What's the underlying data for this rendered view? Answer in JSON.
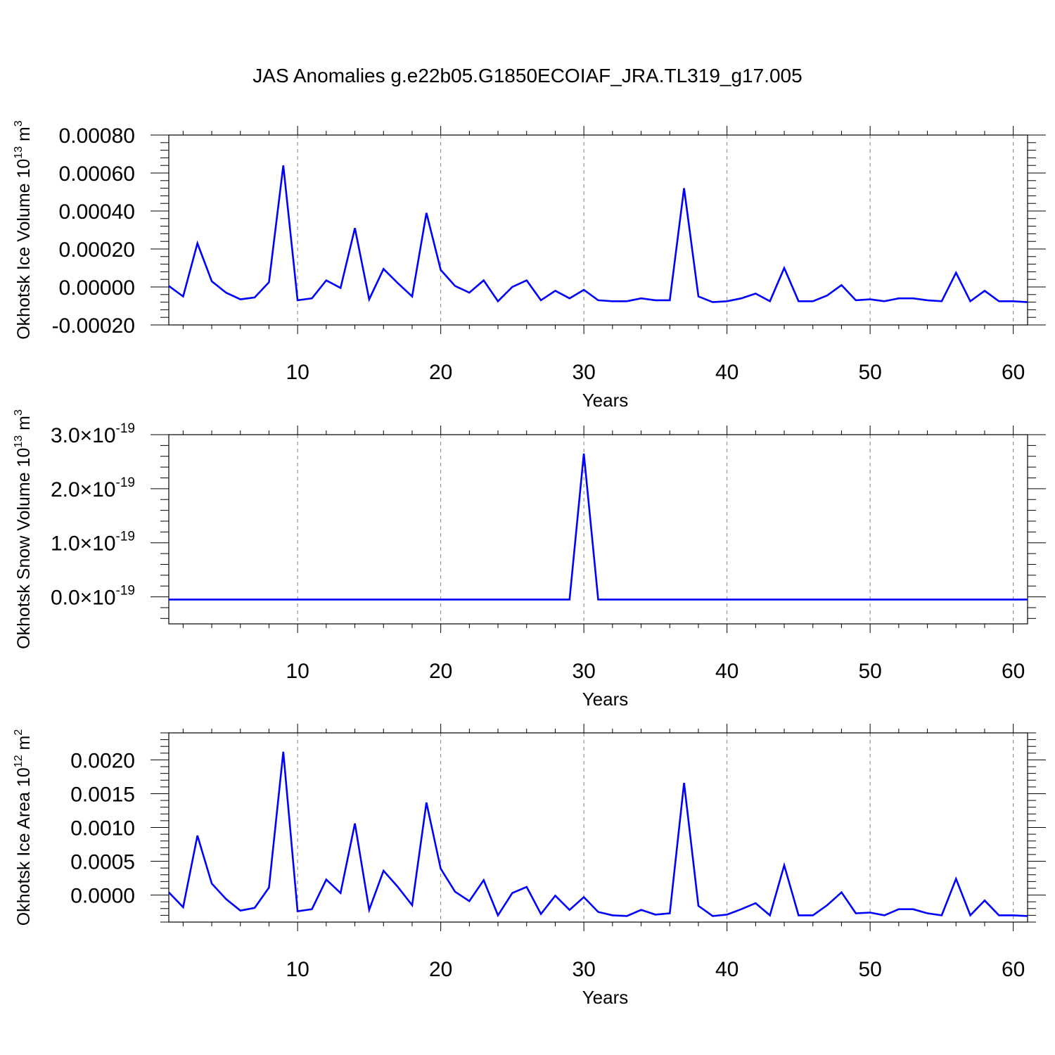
{
  "title": "JAS Anomalies g.e22b05.G1850ECOIAF_JRA.TL319_g17.005",
  "colors": {
    "series": "#0000ff",
    "axis": "#000000",
    "grid": "#808080"
  },
  "chart_data": [
    {
      "type": "line",
      "xlabel": "Years",
      "ylabel_text": "Okhotsk Ice Volume 10",
      "ylabel_exp": "13",
      "ylabel_unit": " m",
      "ylabel_unit_exp": "3",
      "xlim": [
        1,
        61
      ],
      "ylim": [
        -0.0002,
        0.0008
      ],
      "x_ticks": [
        10,
        20,
        30,
        40,
        50,
        60
      ],
      "x_tick_labels": [
        "10",
        "20",
        "30",
        "40",
        "50",
        "60"
      ],
      "y_ticks": [
        -0.0002,
        0.0,
        0.0002,
        0.0004,
        0.0006,
        0.0008
      ],
      "y_tick_labels": [
        "-0.00020",
        "0.00000",
        "0.00020",
        "0.00040",
        "0.00060",
        "0.00080"
      ],
      "grid": "vertical dashed at x ticks",
      "x": [
        1,
        2,
        3,
        4,
        5,
        6,
        7,
        8,
        9,
        10,
        11,
        12,
        13,
        14,
        15,
        16,
        17,
        18,
        19,
        20,
        21,
        22,
        23,
        24,
        25,
        26,
        27,
        28,
        29,
        30,
        31,
        32,
        33,
        34,
        35,
        36,
        37,
        38,
        39,
        40,
        41,
        42,
        43,
        44,
        45,
        46,
        47,
        48,
        49,
        50,
        51,
        52,
        53,
        54,
        55,
        56,
        57,
        58,
        59,
        60,
        61
      ],
      "values": [
        5e-06,
        -5e-05,
        0.00023,
        3e-05,
        -3e-05,
        -6.5e-05,
        -5.5e-05,
        2.5e-05,
        0.00064,
        -7e-05,
        -6e-05,
        3.5e-05,
        -5e-06,
        0.00031,
        -6.5e-05,
        9.5e-05,
        2e-05,
        -5e-05,
        0.00039,
        9e-05,
        5e-06,
        -3e-05,
        3.5e-05,
        -7.5e-05,
        0.0,
        3.5e-05,
        -7e-05,
        -2e-05,
        -6e-05,
        -1.5e-05,
        -7e-05,
        -7.5e-05,
        -7.5e-05,
        -6e-05,
        -7e-05,
        -7e-05,
        0.00052,
        -5e-05,
        -8e-05,
        -7.5e-05,
        -6e-05,
        -3.5e-05,
        -7.5e-05,
        0.0001,
        -7.5e-05,
        -7.5e-05,
        -4.5e-05,
        1e-05,
        -7e-05,
        -6.5e-05,
        -7.5e-05,
        -6e-05,
        -6e-05,
        -7e-05,
        -7.5e-05,
        7.5e-05,
        -7.5e-05,
        -2e-05,
        -7.5e-05,
        -7.5e-05,
        -8e-05
      ]
    },
    {
      "type": "line",
      "xlabel": "Years",
      "ylabel_text": "Okhotsk Snow Volume 10",
      "ylabel_exp": "13",
      "ylabel_unit": " m",
      "ylabel_unit_exp": "3",
      "xlim": [
        1,
        61
      ],
      "ylim": [
        -5e-20,
        3e-19
      ],
      "x_ticks": [
        10,
        20,
        30,
        40,
        50,
        60
      ],
      "x_tick_labels": [
        "10",
        "20",
        "30",
        "40",
        "50",
        "60"
      ],
      "y_ticks": [
        0,
        1e-19,
        2e-19,
        3e-19
      ],
      "y_tick_labels": [
        {
          "mantissa": "0.0",
          "times": "×10",
          "exp": "-19"
        },
        {
          "mantissa": "1.0",
          "times": "×10",
          "exp": "-19"
        },
        {
          "mantissa": "2.0",
          "times": "×10",
          "exp": "-19"
        },
        {
          "mantissa": "3.0",
          "times": "×10",
          "exp": "-19"
        }
      ],
      "grid": "vertical dashed at x ticks",
      "x": [
        1,
        2,
        3,
        4,
        5,
        6,
        7,
        8,
        9,
        10,
        11,
        12,
        13,
        14,
        15,
        16,
        17,
        18,
        19,
        20,
        21,
        22,
        23,
        24,
        25,
        26,
        27,
        28,
        29,
        30,
        31,
        32,
        33,
        34,
        35,
        36,
        37,
        38,
        39,
        40,
        41,
        42,
        43,
        44,
        45,
        46,
        47,
        48,
        49,
        50,
        51,
        52,
        53,
        54,
        55,
        56,
        57,
        58,
        59,
        60,
        61
      ],
      "values": [
        -5e-21,
        -5e-21,
        -5e-21,
        -5e-21,
        -5e-21,
        -5e-21,
        -5e-21,
        -5e-21,
        -5e-21,
        -5e-21,
        -5e-21,
        -5e-21,
        -5e-21,
        -5e-21,
        -5e-21,
        -5e-21,
        -5e-21,
        -5e-21,
        -5e-21,
        -5e-21,
        -5e-21,
        -5e-21,
        -5e-21,
        -5e-21,
        -5e-21,
        -5e-21,
        -5e-21,
        -5e-21,
        -5e-21,
        2.65e-19,
        -5e-21,
        -5e-21,
        -5e-21,
        -5e-21,
        -5e-21,
        -5e-21,
        -5e-21,
        -5e-21,
        -5e-21,
        -5e-21,
        -5e-21,
        -5e-21,
        -5e-21,
        -5e-21,
        -5e-21,
        -5e-21,
        -5e-21,
        -5e-21,
        -5e-21,
        -5e-21,
        -5e-21,
        -5e-21,
        -5e-21,
        -5e-21,
        -5e-21,
        -5e-21,
        -5e-21,
        -5e-21,
        -5e-21,
        -5e-21,
        -5e-21
      ]
    },
    {
      "type": "line",
      "xlabel": "Years",
      "ylabel_text": "Okhotsk Ice Area 10",
      "ylabel_exp": "12",
      "ylabel_unit": " m",
      "ylabel_unit_exp": "2",
      "xlim": [
        1,
        61
      ],
      "ylim": [
        -0.0004,
        0.0024
      ],
      "x_ticks": [
        10,
        20,
        30,
        40,
        50,
        60
      ],
      "x_tick_labels": [
        "10",
        "20",
        "30",
        "40",
        "50",
        "60"
      ],
      "y_ticks": [
        0.0,
        0.0005,
        0.001,
        0.0015,
        0.002
      ],
      "y_tick_labels": [
        "0.0000",
        "0.0005",
        "0.0010",
        "0.0015",
        "0.0020"
      ],
      "grid": "vertical dashed at x ticks",
      "x": [
        1,
        2,
        3,
        4,
        5,
        6,
        7,
        8,
        9,
        10,
        11,
        12,
        13,
        14,
        15,
        16,
        17,
        18,
        19,
        20,
        21,
        22,
        23,
        24,
        25,
        26,
        27,
        28,
        29,
        30,
        31,
        32,
        33,
        34,
        35,
        36,
        37,
        38,
        39,
        40,
        41,
        42,
        43,
        44,
        45,
        46,
        47,
        48,
        49,
        50,
        51,
        52,
        53,
        54,
        55,
        56,
        57,
        58,
        59,
        60,
        61
      ],
      "values": [
        4e-05,
        -0.00018,
        0.00088,
        0.00017,
        -6e-05,
        -0.00023,
        -0.00019,
        0.00011,
        0.00212,
        -0.00024,
        -0.00021,
        0.00023,
        3e-05,
        0.00106,
        -0.00022,
        0.00036,
        0.00012,
        -0.00015,
        0.00137,
        0.00039,
        5e-05,
        -9e-05,
        0.00022,
        -0.0003,
        3e-05,
        0.00012,
        -0.00028,
        -1e-05,
        -0.00022,
        -3e-05,
        -0.00025,
        -0.0003,
        -0.00031,
        -0.00022,
        -0.00029,
        -0.00027,
        0.00166,
        -0.00016,
        -0.00031,
        -0.00029,
        -0.00021,
        -0.00012,
        -0.0003,
        0.00044,
        -0.0003,
        -0.0003,
        -0.00015,
        4e-05,
        -0.00027,
        -0.00026,
        -0.0003,
        -0.00021,
        -0.00021,
        -0.00027,
        -0.0003,
        0.00024,
        -0.0003,
        -8e-05,
        -0.0003,
        -0.0003,
        -0.00031
      ]
    }
  ]
}
